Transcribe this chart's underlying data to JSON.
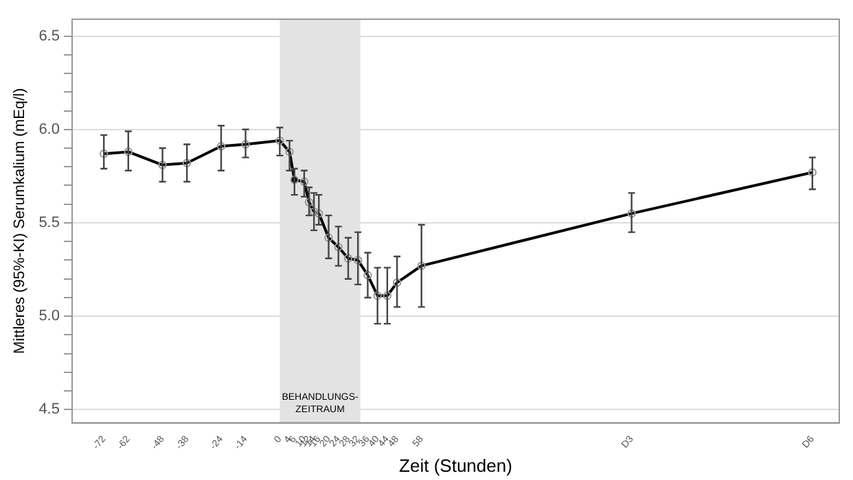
{
  "chart_data": {
    "type": "line",
    "xlabel": "Zeit (Stunden)",
    "ylabel": "Mittleres (95%-KI) Serumkalium (mEq/l)",
    "xlim": [
      -85,
      229
    ],
    "ylim": [
      4.43,
      6.59
    ],
    "xticks": [
      -72,
      -62,
      -48,
      -38,
      -24,
      -14,
      0,
      4,
      6,
      10,
      12,
      14,
      16,
      20,
      24,
      28,
      32,
      36,
      40,
      44,
      48,
      58,
      {
        "value": 144,
        "label": "D3"
      },
      {
        "value": 218,
        "label": "D6"
      }
    ],
    "yticks": [
      4.5,
      {
        "value": 4.6,
        "label": null
      },
      {
        "value": 4.7,
        "label": null
      },
      {
        "value": 4.8,
        "label": null
      },
      {
        "value": 4.9,
        "label": null
      },
      {
        "value": 5.0,
        "label": "5.0"
      },
      {
        "value": 5.1,
        "label": null
      },
      {
        "value": 5.2,
        "label": null
      },
      {
        "value": 5.3,
        "label": null
      },
      {
        "value": 5.4,
        "label": null
      },
      5.5,
      {
        "value": 5.6,
        "label": null
      },
      {
        "value": 5.7,
        "label": null
      },
      {
        "value": 5.8,
        "label": null
      },
      {
        "value": 5.9,
        "label": null
      },
      {
        "value": 6.0,
        "label": "6.0"
      },
      {
        "value": 6.1,
        "label": null
      },
      {
        "value": 6.2,
        "label": null
      },
      {
        "value": 6.3,
        "label": null
      },
      {
        "value": 6.4,
        "label": null
      },
      6.5
    ],
    "grid": "y",
    "legend": false,
    "marker": "circle",
    "line_style": "solid",
    "bands": [
      {
        "axis": "x",
        "from": 0,
        "to": 33,
        "label": "BEHANDLUNGS-\nZEITRAUM",
        "color": "#e3e3e3"
      }
    ],
    "series": [
      {
        "type": "line",
        "color": "#000000",
        "x": [
          -72,
          -62,
          -48,
          -38,
          -24,
          -14,
          0,
          4,
          6,
          10,
          12,
          14,
          16,
          20,
          24,
          28,
          32,
          36,
          40,
          44,
          48,
          58,
          144,
          218
        ],
        "values": [
          5.87,
          5.88,
          5.81,
          5.82,
          5.91,
          5.92,
          5.94,
          5.88,
          5.73,
          5.72,
          5.61,
          5.56,
          5.55,
          5.42,
          5.37,
          5.31,
          5.3,
          5.22,
          5.11,
          5.11,
          5.18,
          5.27,
          5.55,
          5.77
        ],
        "errors": [
          [
            5.79,
            5.97
          ],
          [
            5.78,
            5.99
          ],
          [
            5.72,
            5.9
          ],
          [
            5.72,
            5.92
          ],
          [
            5.78,
            6.02
          ],
          [
            5.85,
            6.0
          ],
          [
            5.86,
            6.01
          ],
          [
            5.78,
            5.94
          ],
          [
            5.65,
            5.79
          ],
          [
            5.64,
            5.78
          ],
          [
            5.54,
            5.69
          ],
          [
            5.46,
            5.66
          ],
          [
            5.49,
            5.65
          ],
          [
            5.31,
            5.54
          ],
          [
            5.27,
            5.48
          ],
          [
            5.2,
            5.42
          ],
          [
            5.17,
            5.45
          ],
          [
            5.1,
            5.34
          ],
          [
            4.96,
            5.26
          ],
          [
            4.96,
            5.26
          ],
          [
            5.05,
            5.32
          ],
          [
            5.05,
            5.49
          ],
          [
            5.45,
            5.66
          ],
          [
            5.68,
            5.85
          ]
        ]
      },
      {
        "type": "scatter",
        "color": "#000000",
        "x": [
          6
        ],
        "values": [
          5.73
        ]
      }
    ]
  }
}
